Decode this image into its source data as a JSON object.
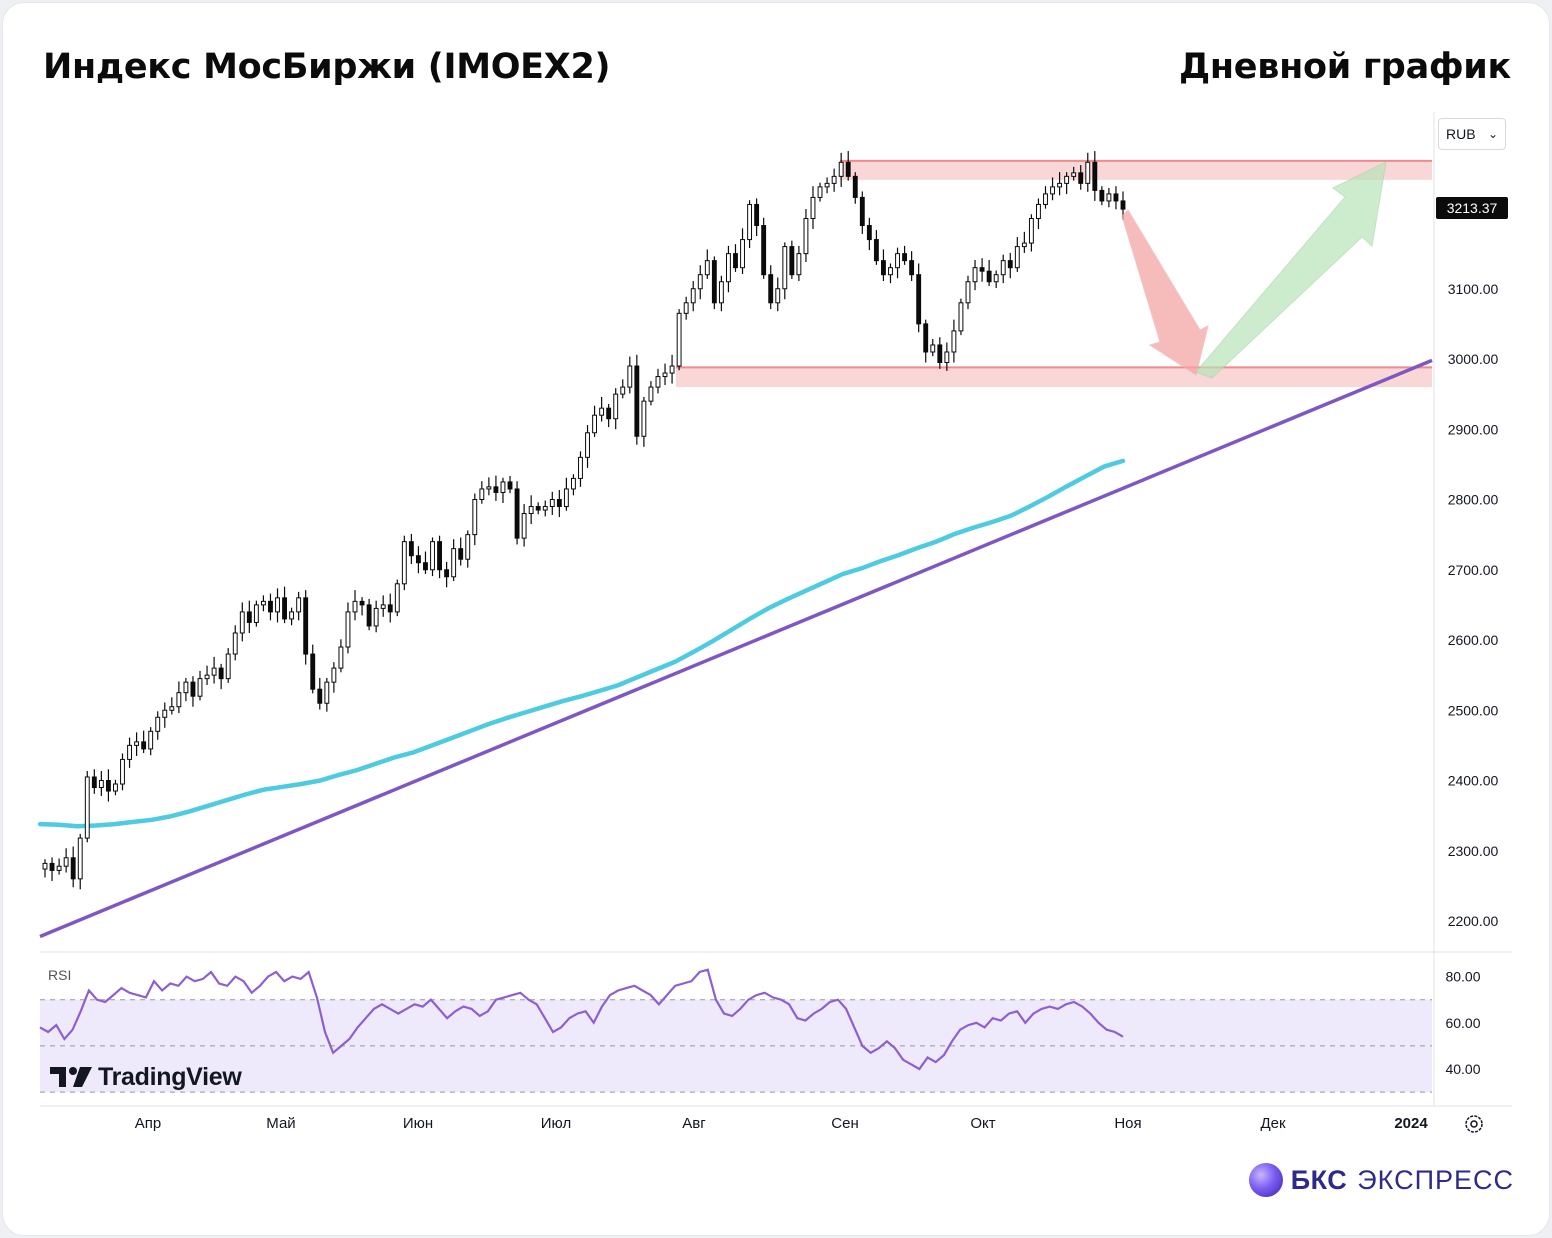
{
  "header": {
    "title": "Индекс МосБиржи (IMOEX2)",
    "timeframe": "Дневной график"
  },
  "currency_select": {
    "value": "RUB"
  },
  "last_price_tag": "3213.37",
  "watermark": "TradingView",
  "brand": {
    "name": "БКС",
    "suffix": "ЭКСПРЕСС"
  },
  "colors": {
    "candle_body": "#0b0b0b",
    "moving_average": "#4ecbe0",
    "trendline": "#7e57c2",
    "zone_fill": "#f8caca",
    "zone_line": "#f08a8f",
    "arrow_down": "#f4a6a6",
    "arrow_up": "#b8e3b8",
    "rsi_line": "#8e5fd0",
    "rsi_band": "#efeafb"
  },
  "chart_data": [
    {
      "type": "candlestick",
      "y_axis": {
        "ticks": [
          "2200.00",
          "2300.00",
          "2400.00",
          "2500.00",
          "2600.00",
          "2700.00",
          "2800.00",
          "2900.00",
          "3000.00",
          "3100.00"
        ],
        "ylim": [
          2170,
          3310
        ]
      },
      "x_axis": {
        "ticks": [
          "Апр",
          "Май",
          "Июн",
          "Июл",
          "Авг",
          "Сен",
          "Окт",
          "Ноя",
          "Дек",
          "2024"
        ]
      },
      "candles_close": [
        2282,
        2272,
        2278,
        2290,
        2260,
        2318,
        2405,
        2390,
        2400,
        2385,
        2395,
        2430,
        2450,
        2455,
        2445,
        2470,
        2490,
        2500,
        2505,
        2525,
        2540,
        2520,
        2545,
        2550,
        2560,
        2545,
        2580,
        2610,
        2640,
        2625,
        2650,
        2655,
        2640,
        2660,
        2630,
        2640,
        2660,
        2580,
        2530,
        2510,
        2540,
        2560,
        2590,
        2640,
        2655,
        2650,
        2620,
        2645,
        2650,
        2640,
        2680,
        2740,
        2720,
        2710,
        2700,
        2740,
        2700,
        2690,
        2730,
        2715,
        2750,
        2800,
        2815,
        2818,
        2810,
        2825,
        2815,
        2745,
        2780,
        2790,
        2785,
        2790,
        2800,
        2790,
        2815,
        2830,
        2860,
        2895,
        2920,
        2930,
        2915,
        2950,
        2960,
        2990,
        2890,
        2940,
        2960,
        2975,
        2980,
        2990,
        3065,
        3080,
        3100,
        3120,
        3140,
        3080,
        3110,
        3150,
        3130,
        3170,
        3220,
        3190,
        3120,
        3080,
        3100,
        3160,
        3120,
        3150,
        3200,
        3230,
        3245,
        3250,
        3260,
        3280,
        3260,
        3230,
        3190,
        3170,
        3140,
        3120,
        3130,
        3150,
        3140,
        3120,
        3050,
        3010,
        3020,
        2995,
        3010,
        3040,
        3080,
        3110,
        3130,
        3125,
        3110,
        3120,
        3140,
        3130,
        3160,
        3165,
        3200,
        3220,
        3235,
        3245,
        3250,
        3260,
        3265,
        3250,
        3280,
        3240,
        3225,
        3235,
        3225,
        3213.37
      ],
      "moving_average_series": [
        2338,
        2337,
        2335,
        2336,
        2338,
        2341,
        2344,
        2349,
        2356,
        2364,
        2372,
        2380,
        2387,
        2391,
        2395,
        2400,
        2408,
        2415,
        2424,
        2433,
        2440,
        2450,
        2460,
        2470,
        2480,
        2489,
        2497,
        2505,
        2513,
        2520,
        2528,
        2536,
        2547,
        2558,
        2569,
        2583,
        2598,
        2614,
        2630,
        2645,
        2658,
        2670,
        2682,
        2694,
        2702,
        2712,
        2721,
        2731,
        2740,
        2751,
        2760,
        2768,
        2777,
        2790,
        2804,
        2819,
        2833,
        2847,
        2855
      ],
      "trendline": {
        "from": {
          "date": "early Mar",
          "value": 2178
        },
        "to": {
          "date": "end Dec",
          "value": 2998
        }
      },
      "resistance_zone": [
        3255,
        3282
      ],
      "support_zone": [
        2960,
        2988
      ]
    },
    {
      "type": "line",
      "name": "RSI",
      "y_axis": {
        "ticks": [
          "80.00",
          "60.00",
          "40.00"
        ],
        "ylim": [
          30,
          88
        ]
      },
      "bands": [
        30,
        70
      ],
      "mid": 50,
      "values": [
        58,
        56,
        59,
        53,
        57,
        65,
        74,
        70,
        69,
        72,
        75,
        73,
        72,
        71,
        78,
        74,
        77,
        76,
        80,
        78,
        79,
        82,
        77,
        76,
        80,
        78,
        73,
        76,
        80,
        82,
        78,
        80,
        79,
        82,
        71,
        56,
        47,
        50,
        53,
        58,
        62,
        66,
        68,
        66,
        64,
        66,
        68,
        67,
        70,
        66,
        62,
        65,
        67,
        66,
        63,
        65,
        70,
        71,
        72,
        73,
        70,
        68,
        62,
        56,
        58,
        62,
        64,
        65,
        60,
        67,
        72,
        74,
        75,
        76,
        74,
        72,
        68,
        72,
        76,
        77,
        78,
        82,
        83,
        70,
        64,
        63,
        66,
        70,
        72,
        73,
        71,
        70,
        68,
        62,
        61,
        64,
        66,
        69,
        70,
        66,
        58,
        50,
        47,
        49,
        52,
        49,
        44,
        42,
        40,
        45,
        43,
        46,
        52,
        57,
        59,
        60,
        58,
        62,
        61,
        64,
        65,
        60,
        64,
        66,
        67,
        66,
        68,
        69,
        67,
        64,
        60,
        57,
        56,
        54
      ]
    }
  ]
}
